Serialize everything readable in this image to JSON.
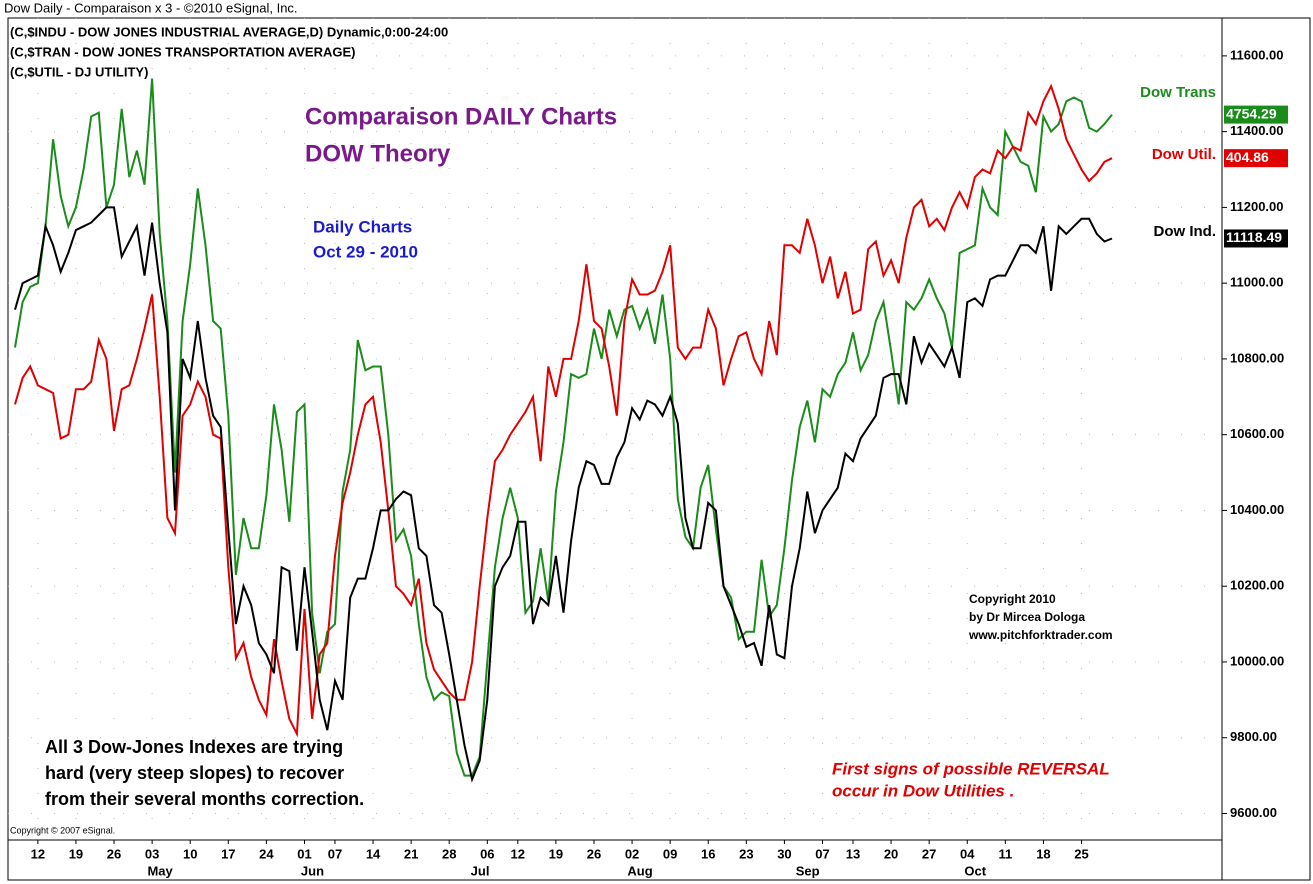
{
  "window_title": "Dow Daily - Comparaison x 3 - ©2010 eSignal, Inc.",
  "chart_data": {
    "type": "line",
    "header_lines": [
      "(C,$INDU - DOW JONES INDUSTRIAL AVERAGE,D) Dynamic,0:00-24:00",
      "(C,$TRAN - DOW JONES TRANSPORTATION AVERAGE)",
      "(C,$UTIL - DJ UTILITY)"
    ],
    "title_lines": [
      "Comparaison DAILY Charts",
      "DOW Theory"
    ],
    "subtitle_lines": [
      "Daily Charts",
      "Oct 29 - 2010"
    ],
    "credit_lines": [
      "Copyright 2010",
      "by Dr Mircea Dologa",
      "www.pitchforktrader.com"
    ],
    "notes": [
      "All 3 Dow-Jones Indexes are trying",
      "hard (very steep slopes) to recover",
      "from their several months correction."
    ],
    "reversal_note": [
      "First signs of possible REVERSAL",
      "occur in Dow Utilities ."
    ],
    "footer": "Copyright © 2007 eSignal.",
    "categories": [
      null,
      null,
      null,
      "12",
      null,
      null,
      null,
      null,
      "19",
      null,
      null,
      null,
      null,
      "26",
      null,
      null,
      null,
      null,
      "03",
      null,
      null,
      null,
      null,
      "10",
      null,
      null,
      null,
      null,
      "17",
      null,
      null,
      null,
      null,
      "24",
      null,
      null,
      null,
      null,
      "01",
      null,
      null,
      null,
      "07",
      null,
      null,
      null,
      null,
      "14",
      null,
      null,
      null,
      null,
      "21",
      null,
      null,
      null,
      null,
      "28",
      null,
      null,
      null,
      null,
      "06",
      null,
      null,
      null,
      "12",
      null,
      null,
      null,
      null,
      "19",
      null,
      null,
      null,
      null,
      "26",
      null,
      null,
      null,
      null,
      "02",
      null,
      null,
      null,
      null,
      "09",
      null,
      null,
      null,
      null,
      "16",
      null,
      null,
      null,
      null,
      "23",
      null,
      null,
      null,
      null,
      "30",
      null,
      null,
      null,
      null,
      "07",
      null,
      null,
      null,
      "13",
      null,
      null,
      null,
      null,
      "20",
      null,
      null,
      null,
      null,
      "27",
      null,
      null,
      null,
      null,
      "04",
      null,
      null,
      null,
      null,
      "11",
      null,
      null,
      null,
      null,
      "18",
      null,
      null,
      null,
      null,
      "25",
      null,
      null,
      null,
      null
    ],
    "months": [
      {
        "label": "May",
        "index": 18
      },
      {
        "label": "Jun",
        "index": 38
      },
      {
        "label": "Jul",
        "index": 60
      },
      {
        "label": "Aug",
        "index": 81
      },
      {
        "label": "Sep",
        "index": 103
      },
      {
        "label": "Oct",
        "index": 125
      }
    ],
    "series": [
      {
        "name": "Dow Trans",
        "color": "#1a8c1a",
        "last_label": "4754.29",
        "values": [
          10830,
          10950,
          10990,
          11000,
          11150,
          11380,
          11230,
          11150,
          11200,
          11300,
          11440,
          11450,
          11200,
          11260,
          11460,
          11280,
          11350,
          11260,
          11540,
          11130,
          10900,
          10500,
          10900,
          11050,
          11250,
          11100,
          10900,
          10880,
          10650,
          10230,
          10380,
          10300,
          10300,
          10440,
          10680,
          10560,
          10370,
          10660,
          10680,
          10130,
          9970,
          10080,
          10100,
          10450,
          10560,
          10850,
          10770,
          10780,
          10780,
          10600,
          10320,
          10350,
          10280,
          10100,
          9960,
          9900,
          9920,
          9910,
          9760,
          9700,
          9700,
          9750,
          10000,
          10250,
          10380,
          10460,
          10380,
          10130,
          10160,
          10300,
          10160,
          10450,
          10580,
          10760,
          10750,
          10760,
          10880,
          10800,
          10930,
          10860,
          10930,
          10940,
          10880,
          10930,
          10840,
          10970,
          10800,
          10430,
          10330,
          10300,
          10460,
          10520,
          10350,
          10200,
          10170,
          10060,
          10080,
          10080,
          10270,
          10120,
          10150,
          10300,
          10480,
          10620,
          10690,
          10580,
          10720,
          10700,
          10760,
          10790,
          10870,
          10770,
          10810,
          10900,
          10950,
          10820,
          10680,
          10950,
          10930,
          10960,
          11010,
          10960,
          10920,
          10830,
          11080,
          11090,
          11100,
          11250,
          11200,
          11180,
          11400,
          11360,
          11320,
          11310,
          11240,
          11440,
          11400,
          11420,
          11480,
          11490,
          11480,
          11410,
          11400,
          11420,
          11445
        ]
      },
      {
        "name": "Dow Util.",
        "color": "#e00000",
        "last_label": "404.86",
        "values": [
          10680,
          10750,
          10780,
          10730,
          10720,
          10710,
          10590,
          10600,
          10720,
          10720,
          10740,
          10850,
          10800,
          10610,
          10720,
          10730,
          10800,
          10880,
          10970,
          10700,
          10380,
          10340,
          10650,
          10680,
          10740,
          10700,
          10600,
          10590,
          10250,
          10010,
          10050,
          9960,
          9900,
          9860,
          10060,
          9950,
          9850,
          9810,
          10140,
          9850,
          10020,
          10050,
          10280,
          10420,
          10500,
          10600,
          10680,
          10700,
          10580,
          10400,
          10200,
          10180,
          10150,
          10220,
          10050,
          9980,
          9950,
          9920,
          9900,
          9900,
          10000,
          10200,
          10380,
          10530,
          10560,
          10600,
          10630,
          10660,
          10700,
          10530,
          10780,
          10700,
          10800,
          10800,
          10900,
          11050,
          10900,
          10880,
          10780,
          10650,
          10900,
          11010,
          10970,
          10970,
          10980,
          11030,
          11100,
          10830,
          10800,
          10830,
          10830,
          10930,
          10880,
          10730,
          10800,
          10860,
          10870,
          10800,
          10760,
          10900,
          10810,
          11100,
          11100,
          11080,
          11170,
          11100,
          11000,
          11070,
          10960,
          11030,
          10920,
          10930,
          11090,
          11110,
          11020,
          11060,
          11000,
          11120,
          11200,
          11220,
          11150,
          11170,
          11140,
          11200,
          11240,
          11200,
          11280,
          11300,
          11290,
          11350,
          11330,
          11360,
          11350,
          11450,
          11420,
          11480,
          11520,
          11460,
          11380,
          11340,
          11300,
          11270,
          11290,
          11320,
          11330
        ]
      },
      {
        "name": "Dow Ind.",
        "color": "#000000",
        "last_label": "11118.49",
        "values": [
          10930,
          11000,
          11010,
          11020,
          11150,
          11100,
          11030,
          11080,
          11140,
          11150,
          11160,
          11180,
          11200,
          11200,
          11070,
          11110,
          11150,
          11020,
          11160,
          11000,
          10870,
          10400,
          10800,
          10750,
          10900,
          10750,
          10650,
          10620,
          10350,
          10100,
          10200,
          10150,
          10050,
          10020,
          9970,
          10250,
          10240,
          10030,
          10250,
          10080,
          9900,
          9820,
          9950,
          9900,
          10170,
          10220,
          10220,
          10300,
          10400,
          10400,
          10430,
          10450,
          10440,
          10300,
          10280,
          10150,
          10130,
          10020,
          9900,
          9780,
          9690,
          9740,
          9900,
          10200,
          10250,
          10280,
          10370,
          10370,
          10100,
          10170,
          10150,
          10280,
          10130,
          10320,
          10460,
          10530,
          10520,
          10470,
          10470,
          10540,
          10580,
          10670,
          10640,
          10690,
          10680,
          10650,
          10700,
          10630,
          10380,
          10300,
          10300,
          10420,
          10400,
          10200,
          10150,
          10100,
          10040,
          10050,
          9990,
          10150,
          10020,
          10010,
          10200,
          10300,
          10450,
          10340,
          10400,
          10430,
          10460,
          10550,
          10530,
          10590,
          10620,
          10650,
          10750,
          10760,
          10760,
          10680,
          10860,
          10790,
          10840,
          10810,
          10780,
          10830,
          10750,
          10950,
          10960,
          10940,
          11010,
          11020,
          11020,
          11060,
          11100,
          11100,
          11080,
          11150,
          10980,
          11150,
          11130,
          11150,
          11170,
          11170,
          11130,
          11110,
          11118
        ]
      }
    ],
    "ylim": [
      9530,
      11700
    ],
    "yticks": [
      {
        "value": 9600,
        "label": "9600.00"
      },
      {
        "value": 9800,
        "label": "9800.00"
      },
      {
        "value": 10000,
        "label": "10000.00"
      },
      {
        "value": 10200,
        "label": "10200.00"
      },
      {
        "value": 10400,
        "label": "10400.00"
      },
      {
        "value": 10600,
        "label": "10600.00"
      },
      {
        "value": 10800,
        "label": "10800.00"
      },
      {
        "value": 11000,
        "label": "11000.00"
      },
      {
        "value": 11200,
        "label": "11200.00"
      },
      {
        "value": 11400,
        "label": "11400.00"
      },
      {
        "value": 11600,
        "label": "11600.00"
      }
    ],
    "grid": true
  }
}
